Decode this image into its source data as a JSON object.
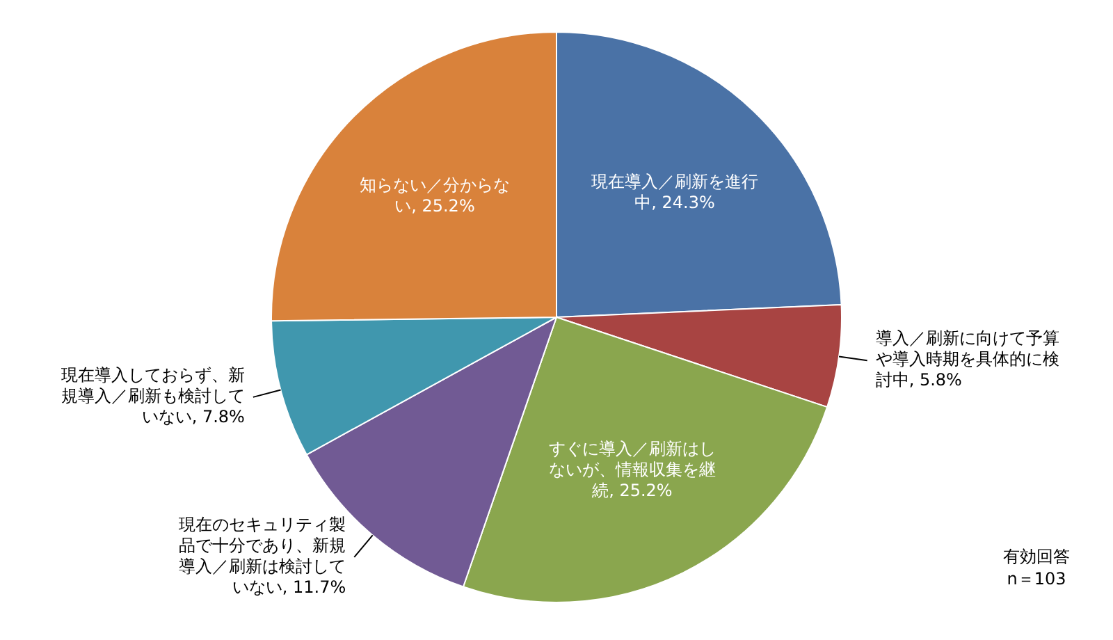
{
  "chart_data": {
    "type": "pie",
    "categories": [
      "現在導入／刷新を進行中",
      "導入／刷新に向けて予算や導入時期を具体的に検討中",
      "すぐに導入／刷新はしないが、情報収集を継続",
      "現在のセキュリティ製品で十分であり、新規導入／刷新は検討していない",
      "現在導入しておらず、新規導入／刷新も検討していない",
      "知らない／分からない"
    ],
    "values": [
      24.3,
      5.8,
      25.2,
      11.7,
      7.8,
      25.2
    ],
    "value_labels": [
      "24.3%",
      "5.8%",
      "25.2%",
      "11.7%",
      "7.8%",
      "25.2%"
    ],
    "colors": [
      "#4a72a6",
      "#a84442",
      "#8aa64e",
      "#715a94",
      "#4097ae",
      "#d9823b"
    ],
    "annotations": [
      "有効回答",
      "n＝103"
    ]
  }
}
